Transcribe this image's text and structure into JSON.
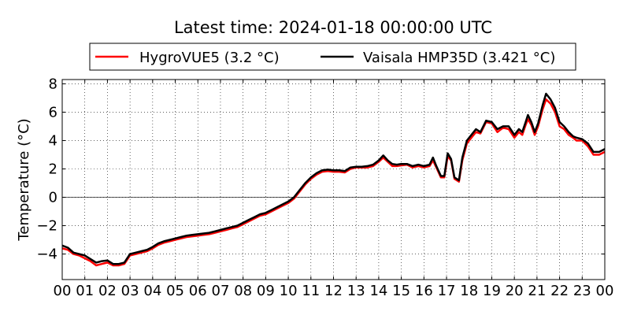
{
  "chart_data": {
    "type": "line",
    "title": "Latest time: 2024-01-18 00:00:00 UTC",
    "xlabel": "",
    "ylabel": "Temperature (°C)",
    "x_tick_labels": [
      "00",
      "01",
      "02",
      "03",
      "04",
      "05",
      "06",
      "07",
      "08",
      "09",
      "10",
      "11",
      "12",
      "13",
      "14",
      "15",
      "16",
      "17",
      "18",
      "19",
      "20",
      "21",
      "22",
      "23",
      "00"
    ],
    "xlim": [
      0,
      24
    ],
    "ylim": [
      -5.8,
      8.3
    ],
    "y_ticks": [
      -4,
      -2,
      0,
      2,
      4,
      6,
      8
    ],
    "y_tick_labels": [
      "−4",
      "−2",
      "0",
      "2",
      "4",
      "6",
      "8"
    ],
    "grid": true,
    "legend_position": "top-center",
    "series": [
      {
        "name": "HygroVUE5 (3.2 °C)",
        "color": "#ff0000",
        "points": [
          [
            0,
            -3.6
          ],
          [
            0.25,
            -3.7
          ],
          [
            0.5,
            -4.0
          ],
          [
            0.75,
            -4.1
          ],
          [
            1.0,
            -4.3
          ],
          [
            1.25,
            -4.5
          ],
          [
            1.5,
            -4.8
          ],
          [
            1.75,
            -4.7
          ],
          [
            2.0,
            -4.6
          ],
          [
            2.25,
            -4.8
          ],
          [
            2.5,
            -4.8
          ],
          [
            2.75,
            -4.7
          ],
          [
            3.0,
            -4.1
          ],
          [
            3.25,
            -4.0
          ],
          [
            3.5,
            -3.9
          ],
          [
            3.75,
            -3.8
          ],
          [
            4.0,
            -3.6
          ],
          [
            4.25,
            -3.35
          ],
          [
            4.5,
            -3.2
          ],
          [
            4.75,
            -3.1
          ],
          [
            5.0,
            -3.0
          ],
          [
            5.25,
            -2.9
          ],
          [
            5.5,
            -2.8
          ],
          [
            5.75,
            -2.75
          ],
          [
            6.0,
            -2.7
          ],
          [
            6.25,
            -2.65
          ],
          [
            6.5,
            -2.6
          ],
          [
            6.75,
            -2.5
          ],
          [
            7.0,
            -2.4
          ],
          [
            7.25,
            -2.3
          ],
          [
            7.5,
            -2.2
          ],
          [
            7.75,
            -2.1
          ],
          [
            8.0,
            -1.9
          ],
          [
            8.25,
            -1.7
          ],
          [
            8.5,
            -1.5
          ],
          [
            8.75,
            -1.3
          ],
          [
            9.0,
            -1.2
          ],
          [
            9.25,
            -1.0
          ],
          [
            9.5,
            -0.8
          ],
          [
            9.75,
            -0.6
          ],
          [
            10.0,
            -0.4
          ],
          [
            10.25,
            -0.1
          ],
          [
            10.5,
            0.4
          ],
          [
            10.75,
            0.9
          ],
          [
            11.0,
            1.3
          ],
          [
            11.25,
            1.6
          ],
          [
            11.5,
            1.8
          ],
          [
            11.75,
            1.85
          ],
          [
            12.0,
            1.8
          ],
          [
            12.25,
            1.8
          ],
          [
            12.5,
            1.75
          ],
          [
            12.75,
            2.0
          ],
          [
            13.0,
            2.1
          ],
          [
            13.25,
            2.1
          ],
          [
            13.5,
            2.1
          ],
          [
            13.75,
            2.2
          ],
          [
            14.0,
            2.5
          ],
          [
            14.2,
            2.8
          ],
          [
            14.4,
            2.5
          ],
          [
            14.6,
            2.2
          ],
          [
            14.8,
            2.2
          ],
          [
            15.0,
            2.25
          ],
          [
            15.25,
            2.3
          ],
          [
            15.5,
            2.1
          ],
          [
            15.75,
            2.2
          ],
          [
            16.0,
            2.1
          ],
          [
            16.25,
            2.2
          ],
          [
            16.4,
            2.6
          ],
          [
            16.55,
            2.1
          ],
          [
            16.75,
            1.4
          ],
          [
            16.9,
            1.4
          ],
          [
            17.05,
            2.9
          ],
          [
            17.2,
            2.6
          ],
          [
            17.35,
            1.3
          ],
          [
            17.55,
            1.1
          ],
          [
            17.7,
            2.6
          ],
          [
            17.9,
            3.8
          ],
          [
            18.1,
            4.2
          ],
          [
            18.3,
            4.6
          ],
          [
            18.5,
            4.5
          ],
          [
            18.75,
            5.3
          ],
          [
            19.0,
            5.2
          ],
          [
            19.25,
            4.6
          ],
          [
            19.5,
            4.9
          ],
          [
            19.75,
            4.8
          ],
          [
            20.0,
            4.2
          ],
          [
            20.2,
            4.6
          ],
          [
            20.35,
            4.4
          ],
          [
            20.5,
            5.1
          ],
          [
            20.6,
            5.5
          ],
          [
            20.75,
            5.1
          ],
          [
            20.9,
            4.4
          ],
          [
            21.05,
            5.0
          ],
          [
            21.25,
            6.2
          ],
          [
            21.4,
            6.9
          ],
          [
            21.6,
            6.6
          ],
          [
            21.8,
            6.0
          ],
          [
            22.0,
            5.0
          ],
          [
            22.2,
            4.8
          ],
          [
            22.4,
            4.4
          ],
          [
            22.6,
            4.2
          ],
          [
            22.75,
            4.0
          ],
          [
            23.0,
            4.0
          ],
          [
            23.25,
            3.6
          ],
          [
            23.5,
            3.0
          ],
          [
            23.75,
            3.0
          ],
          [
            24.0,
            3.2
          ]
        ]
      },
      {
        "name": "Vaisala HMP35D (3.421 °C)",
        "color": "#000000",
        "points": [
          [
            0,
            -3.4
          ],
          [
            0.25,
            -3.55
          ],
          [
            0.5,
            -3.9
          ],
          [
            0.75,
            -4.0
          ],
          [
            1.0,
            -4.1
          ],
          [
            1.25,
            -4.35
          ],
          [
            1.5,
            -4.6
          ],
          [
            1.75,
            -4.5
          ],
          [
            2.0,
            -4.45
          ],
          [
            2.25,
            -4.7
          ],
          [
            2.5,
            -4.7
          ],
          [
            2.75,
            -4.6
          ],
          [
            3.0,
            -4.0
          ],
          [
            3.25,
            -3.9
          ],
          [
            3.5,
            -3.8
          ],
          [
            3.75,
            -3.7
          ],
          [
            4.0,
            -3.5
          ],
          [
            4.25,
            -3.25
          ],
          [
            4.5,
            -3.1
          ],
          [
            4.75,
            -3.0
          ],
          [
            5.0,
            -2.9
          ],
          [
            5.25,
            -2.8
          ],
          [
            5.5,
            -2.7
          ],
          [
            5.75,
            -2.65
          ],
          [
            6.0,
            -2.6
          ],
          [
            6.25,
            -2.55
          ],
          [
            6.5,
            -2.5
          ],
          [
            6.75,
            -2.4
          ],
          [
            7.0,
            -2.3
          ],
          [
            7.25,
            -2.2
          ],
          [
            7.5,
            -2.1
          ],
          [
            7.75,
            -2.0
          ],
          [
            8.0,
            -1.8
          ],
          [
            8.25,
            -1.6
          ],
          [
            8.5,
            -1.4
          ],
          [
            8.75,
            -1.2
          ],
          [
            9.0,
            -1.1
          ],
          [
            9.25,
            -0.9
          ],
          [
            9.5,
            -0.7
          ],
          [
            9.75,
            -0.5
          ],
          [
            10.0,
            -0.3
          ],
          [
            10.25,
            0.0
          ],
          [
            10.5,
            0.5
          ],
          [
            10.75,
            1.0
          ],
          [
            11.0,
            1.4
          ],
          [
            11.25,
            1.7
          ],
          [
            11.5,
            1.9
          ],
          [
            11.75,
            1.95
          ],
          [
            12.0,
            1.9
          ],
          [
            12.25,
            1.9
          ],
          [
            12.5,
            1.85
          ],
          [
            12.75,
            2.1
          ],
          [
            13.0,
            2.15
          ],
          [
            13.25,
            2.15
          ],
          [
            13.5,
            2.2
          ],
          [
            13.75,
            2.3
          ],
          [
            14.0,
            2.6
          ],
          [
            14.2,
            2.95
          ],
          [
            14.4,
            2.6
          ],
          [
            14.6,
            2.35
          ],
          [
            14.8,
            2.3
          ],
          [
            15.0,
            2.35
          ],
          [
            15.25,
            2.35
          ],
          [
            15.5,
            2.2
          ],
          [
            15.75,
            2.3
          ],
          [
            16.0,
            2.2
          ],
          [
            16.25,
            2.3
          ],
          [
            16.4,
            2.8
          ],
          [
            16.55,
            2.2
          ],
          [
            16.75,
            1.5
          ],
          [
            16.9,
            1.5
          ],
          [
            17.05,
            3.1
          ],
          [
            17.2,
            2.7
          ],
          [
            17.35,
            1.4
          ],
          [
            17.55,
            1.2
          ],
          [
            17.7,
            2.8
          ],
          [
            17.9,
            4.0
          ],
          [
            18.1,
            4.4
          ],
          [
            18.3,
            4.8
          ],
          [
            18.5,
            4.6
          ],
          [
            18.75,
            5.4
          ],
          [
            19.0,
            5.3
          ],
          [
            19.25,
            4.8
          ],
          [
            19.5,
            5.0
          ],
          [
            19.75,
            5.0
          ],
          [
            20.0,
            4.4
          ],
          [
            20.2,
            4.8
          ],
          [
            20.35,
            4.6
          ],
          [
            20.5,
            5.3
          ],
          [
            20.6,
            5.8
          ],
          [
            20.75,
            5.3
          ],
          [
            20.9,
            4.6
          ],
          [
            21.05,
            5.2
          ],
          [
            21.25,
            6.5
          ],
          [
            21.4,
            7.3
          ],
          [
            21.6,
            6.9
          ],
          [
            21.8,
            6.3
          ],
          [
            22.0,
            5.3
          ],
          [
            22.2,
            5.0
          ],
          [
            22.4,
            4.6
          ],
          [
            22.6,
            4.3
          ],
          [
            22.75,
            4.2
          ],
          [
            23.0,
            4.1
          ],
          [
            23.25,
            3.8
          ],
          [
            23.5,
            3.2
          ],
          [
            23.75,
            3.2
          ],
          [
            24.0,
            3.4
          ]
        ]
      }
    ]
  }
}
